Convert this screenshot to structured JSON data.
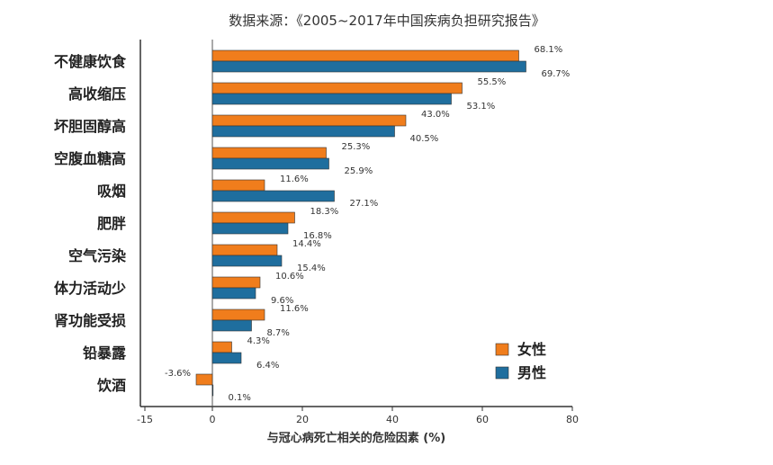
{
  "chart_data": {
    "type": "bar",
    "orientation": "horizontal",
    "title": "数据来源：《2005~2017年中国疾病负担研究报告》",
    "xlabel": "与冠心病死亡相关的危险因素 (%)",
    "ylabel": "",
    "xlim": [
      -15,
      80
    ],
    "xticks": [
      -15,
      0,
      20,
      40,
      60,
      80
    ],
    "categories": [
      "不健康饮食",
      "高收缩压",
      "坏胆固醇高",
      "空腹血糖高",
      "吸烟",
      "肥胖",
      "空气污染",
      "体力活动少",
      "肾功能受损",
      "铅暴露",
      "饮酒"
    ],
    "series": [
      {
        "name": "女性",
        "color": "#f07d1c",
        "values": [
          68.1,
          55.5,
          43.0,
          25.3,
          11.6,
          18.3,
          14.4,
          10.6,
          11.6,
          4.3,
          -3.6
        ],
        "labels": [
          "68.1%",
          "55.5%",
          "43.0%",
          "25.3%",
          "11.6%",
          "18.3%",
          "14.4%",
          "10.6%",
          "11.6%",
          "4.3%",
          "-3.6%"
        ]
      },
      {
        "name": "男性",
        "color": "#1f6e9e",
        "values": [
          69.7,
          53.1,
          40.5,
          25.9,
          27.1,
          16.8,
          15.4,
          9.6,
          8.7,
          6.4,
          0.1
        ],
        "labels": [
          "69.7%",
          "53.1%",
          "40.5%",
          "25.9%",
          "27.1%",
          "16.8%",
          "15.4%",
          "9.6%",
          "8.7%",
          "6.4%",
          "0.1%"
        ]
      }
    ],
    "legend": "bottom-right",
    "grid": false
  }
}
